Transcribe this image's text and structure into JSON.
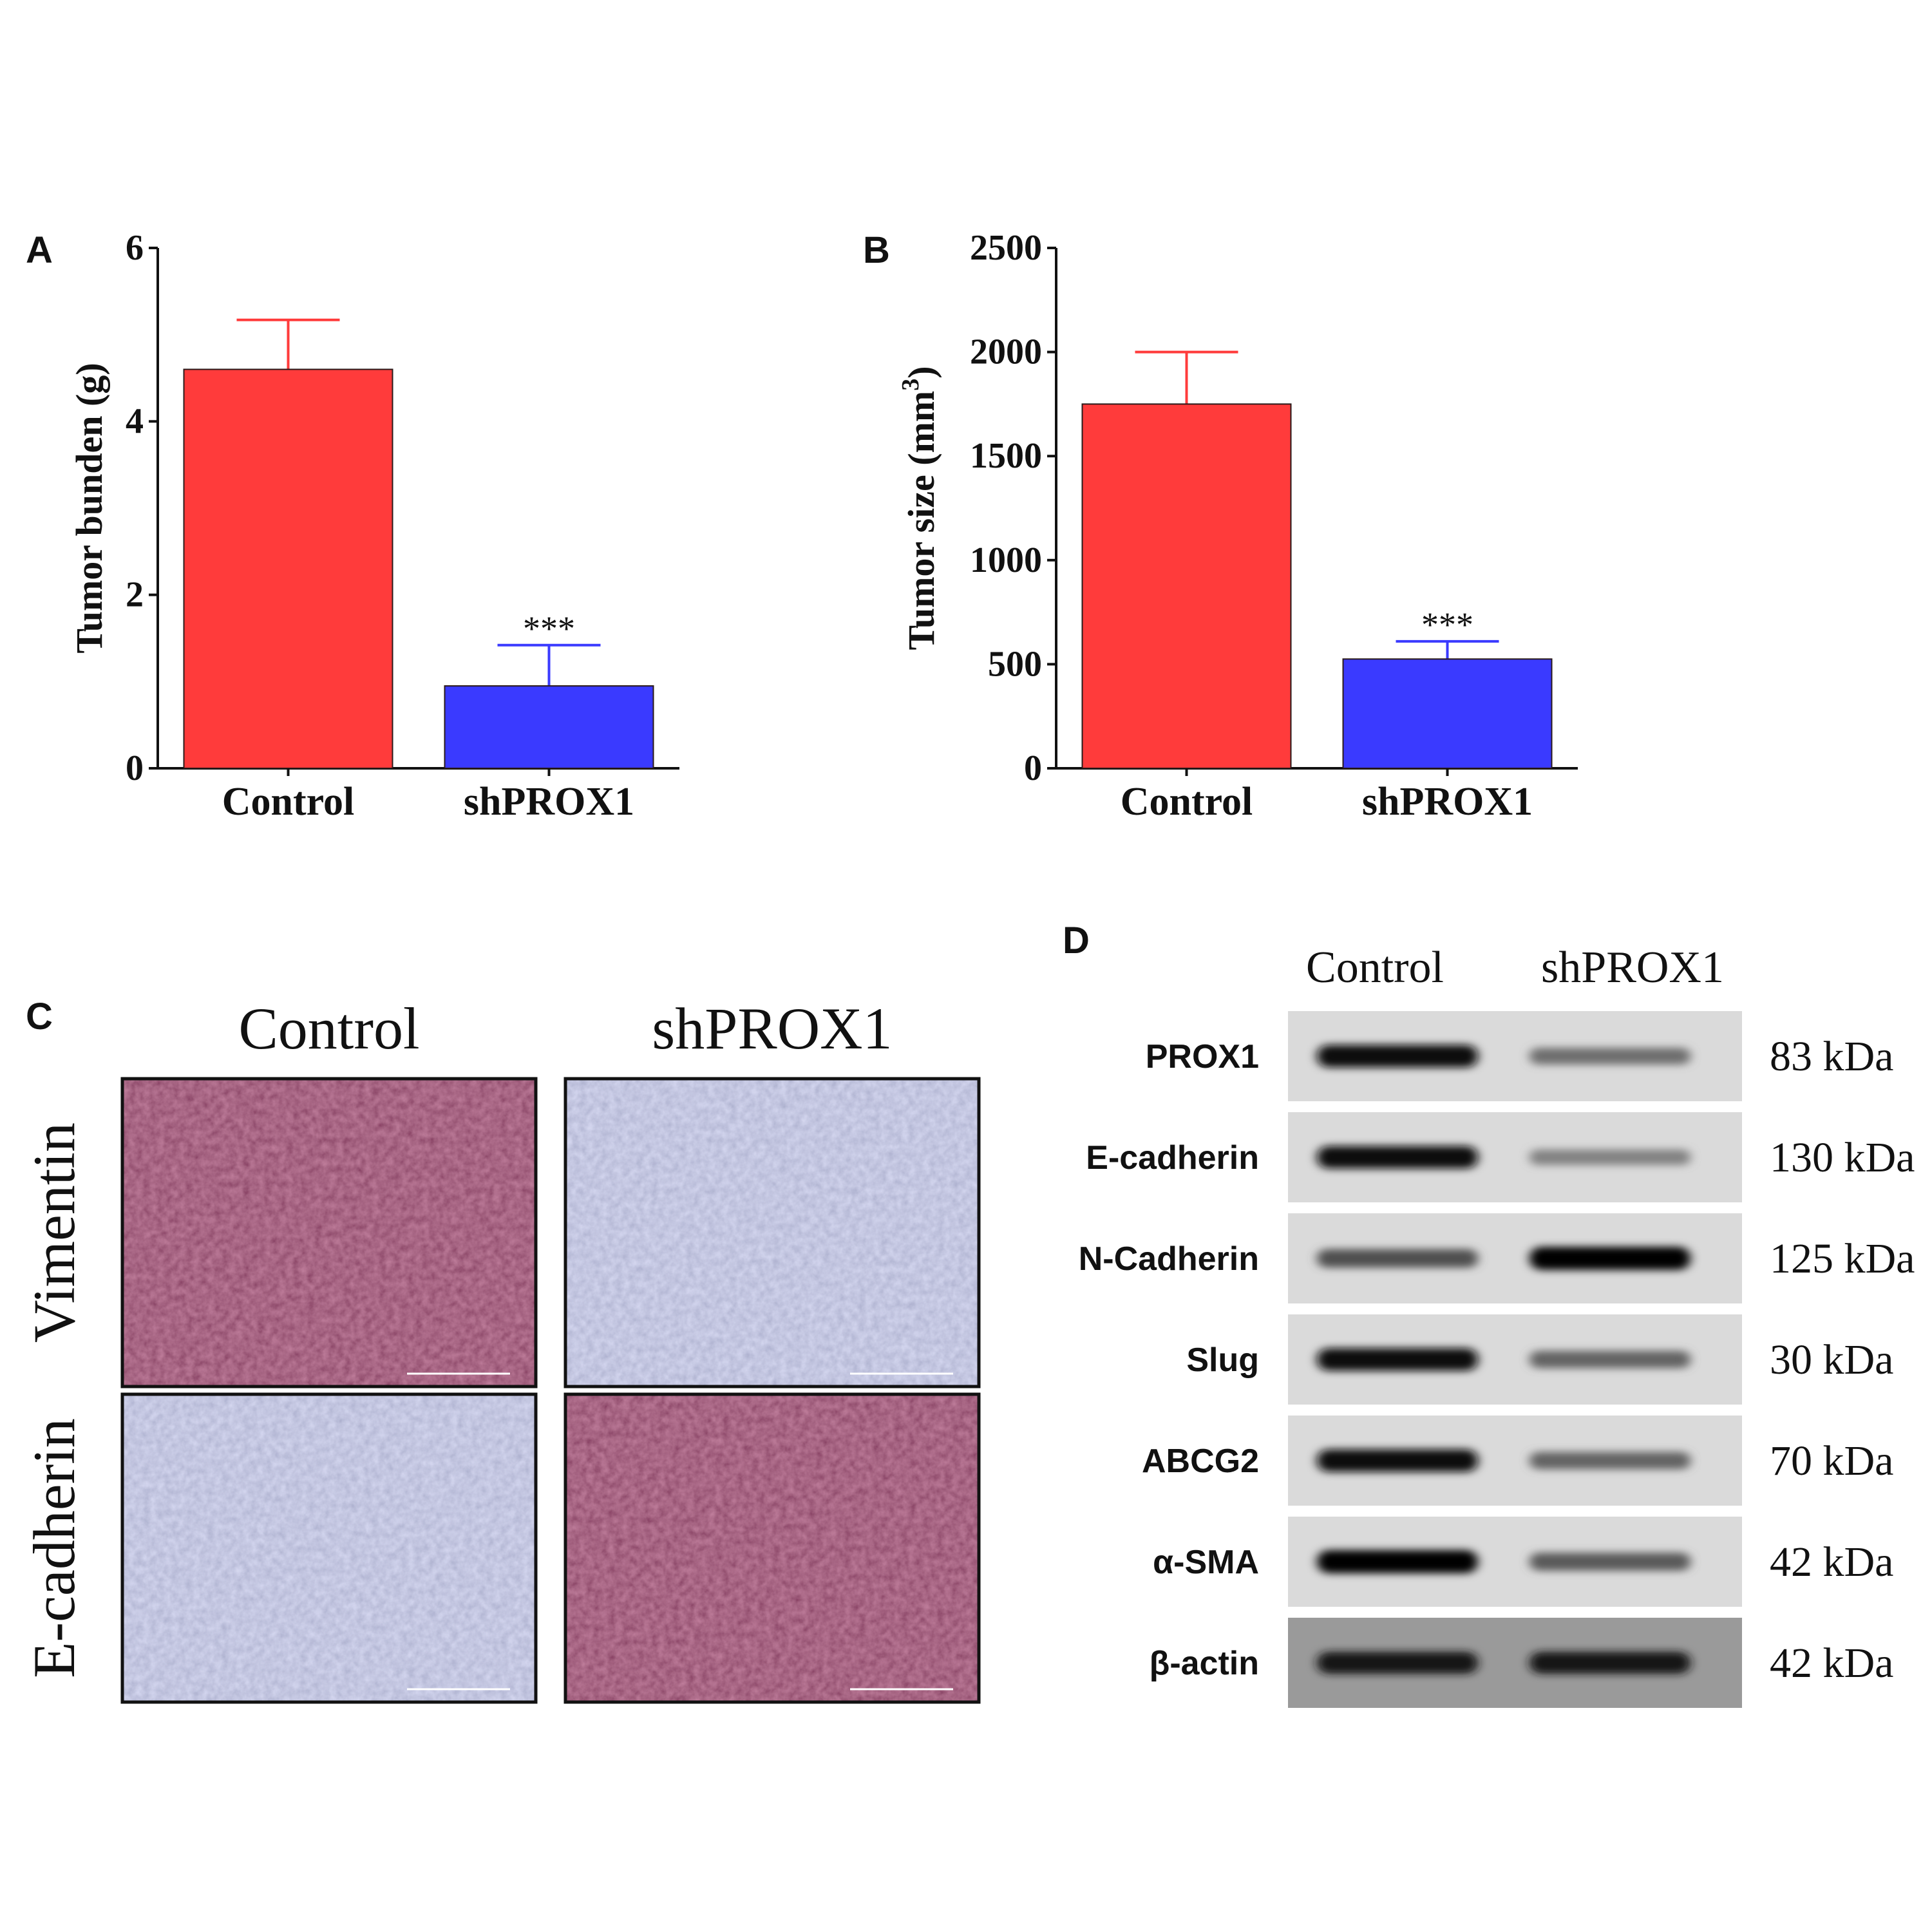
{
  "chart_data": [
    {
      "panel": "A",
      "type": "bar",
      "categories": [
        "Control",
        "shPROX1"
      ],
      "values": [
        4.6,
        0.95
      ],
      "errors": [
        0.57,
        0.47
      ],
      "significance": [
        "",
        "***"
      ],
      "colors": [
        "#ff3b3b",
        "#3a3aff"
      ],
      "ylabel": "Tumor bunden (g)",
      "yticks": [
        "0",
        "2",
        "4",
        "6"
      ],
      "ylim": [
        0,
        6
      ]
    },
    {
      "panel": "B",
      "type": "bar",
      "categories": [
        "Control",
        "shPROX1"
      ],
      "values": [
        1750,
        525
      ],
      "errors": [
        250,
        85
      ],
      "significance": [
        "",
        "***"
      ],
      "colors": [
        "#ff3b3b",
        "#3a3aff"
      ],
      "ylabel_main": "Tumor size (mm",
      "ylabel_sup": "3",
      "ylabel_close": ")",
      "yticks": [
        "0",
        "500",
        "1000",
        "1500",
        "2000",
        "2500"
      ],
      "ylim": [
        0,
        2500
      ]
    }
  ],
  "panel_c": {
    "letter": "C",
    "columns": [
      "Control",
      "shPROX1"
    ],
    "rows": [
      "Vimentin",
      "E-cadherin"
    ],
    "stain_levels": [
      [
        0.85,
        0.15
      ],
      [
        0.15,
        0.8
      ]
    ]
  },
  "panel_d": {
    "letter": "D",
    "columns": [
      "Control",
      "shPROX1"
    ],
    "blots": [
      {
        "protein": "PROX1",
        "kda": "83 kDa",
        "intensity": [
          0.95,
          0.45
        ]
      },
      {
        "protein": "E-cadherin",
        "kda": "130 kDa",
        "intensity": [
          0.95,
          0.35
        ]
      },
      {
        "protein": "N-Cadherin",
        "kda": "125 kDa",
        "intensity": [
          0.6,
          1.0
        ]
      },
      {
        "protein": "Slug",
        "kda": "30 kDa",
        "intensity": [
          0.95,
          0.5
        ]
      },
      {
        "protein": "ABCG2",
        "kda": "70 kDa",
        "intensity": [
          0.95,
          0.5
        ]
      },
      {
        "protein": "α-SMA",
        "kda": "42 kDa",
        "intensity": [
          1.0,
          0.55
        ]
      },
      {
        "protein": "β-actin",
        "kda": "42 kDa",
        "intensity": [
          0.9,
          0.9
        ]
      }
    ]
  }
}
